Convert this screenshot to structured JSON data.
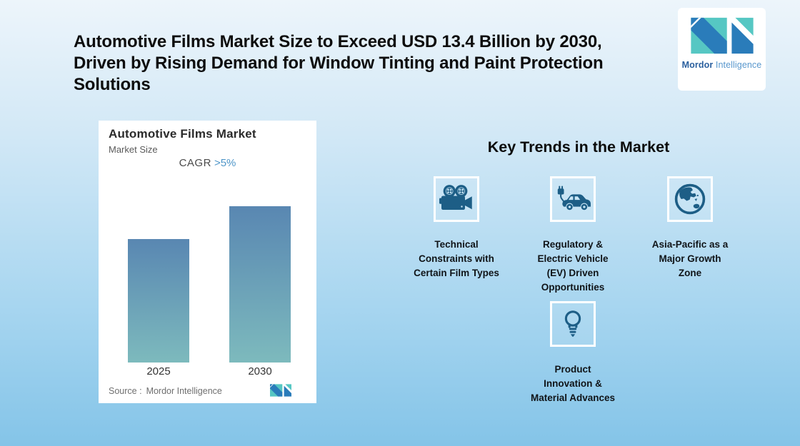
{
  "header": {
    "title": "Automotive Films Market Size to Exceed USD 13.4 Billion by 2030, Driven by Rising Demand for Window Tinting and Paint Protection Solutions"
  },
  "brand": {
    "name_bold": "Mordor",
    "name_light": "Intelligence",
    "logo_teal": "#56c7c3",
    "logo_blue": "#2a7cba"
  },
  "chart_card": {
    "title": "Automotive Films Market",
    "subtitle": "Market Size",
    "cagr_label": "CAGR",
    "cagr_value": ">5%",
    "source_label": "Source :",
    "source_value": "Mordor Intelligence",
    "bar_labels": [
      "2025",
      "2030"
    ]
  },
  "chart_data": {
    "type": "bar",
    "title": "Automotive Films Market",
    "subtitle": "Market Size",
    "categories": [
      "2025",
      "2030"
    ],
    "values": [
      0.79,
      1.0
    ],
    "values_note": "no numeric axis shown; values are relative bar heights (2030 bar = 1.0)",
    "annotation": "CAGR >5%",
    "headline_value_2030": "USD 13.4 Billion",
    "grid": false,
    "legend": false,
    "bar_gradient_top": "#5987b2",
    "bar_gradient_bottom": "#7dbabd",
    "source": "Source : Mordor Intelligence"
  },
  "key_trends": {
    "heading": "Key Trends in the Market",
    "icon_color": "#1d5e86",
    "items": [
      {
        "icon": "film-camera-icon",
        "label": "Technical Constraints with Certain Film Types",
        "lines": [
          "Technical",
          "Constraints with",
          "Certain Film Types"
        ]
      },
      {
        "icon": "ev-car-icon",
        "label": "Regulatory & Electric Vehicle (EV) Driven Opportunities",
        "lines": [
          "Regulatory &",
          "Electric Vehicle",
          "(EV) Driven",
          "Opportunities"
        ]
      },
      {
        "icon": "globe-asia-icon",
        "label": "Asia-Pacific as a Major Growth Zone",
        "lines": [
          "Asia-Pacific as a",
          "Major Growth",
          "Zone"
        ]
      },
      {
        "icon": "lightbulb-icon",
        "label": "Product Innovation & Material Advances",
        "lines": [
          "Product",
          "Innovation &",
          "Material Advances"
        ]
      }
    ]
  },
  "colors": {
    "background_top": "#edf5fb",
    "background_bottom": "#84c4e8",
    "card_background": "#ffffff",
    "title_text": "#0d0d0d",
    "cagr_value_blue": "#4f96c8"
  }
}
